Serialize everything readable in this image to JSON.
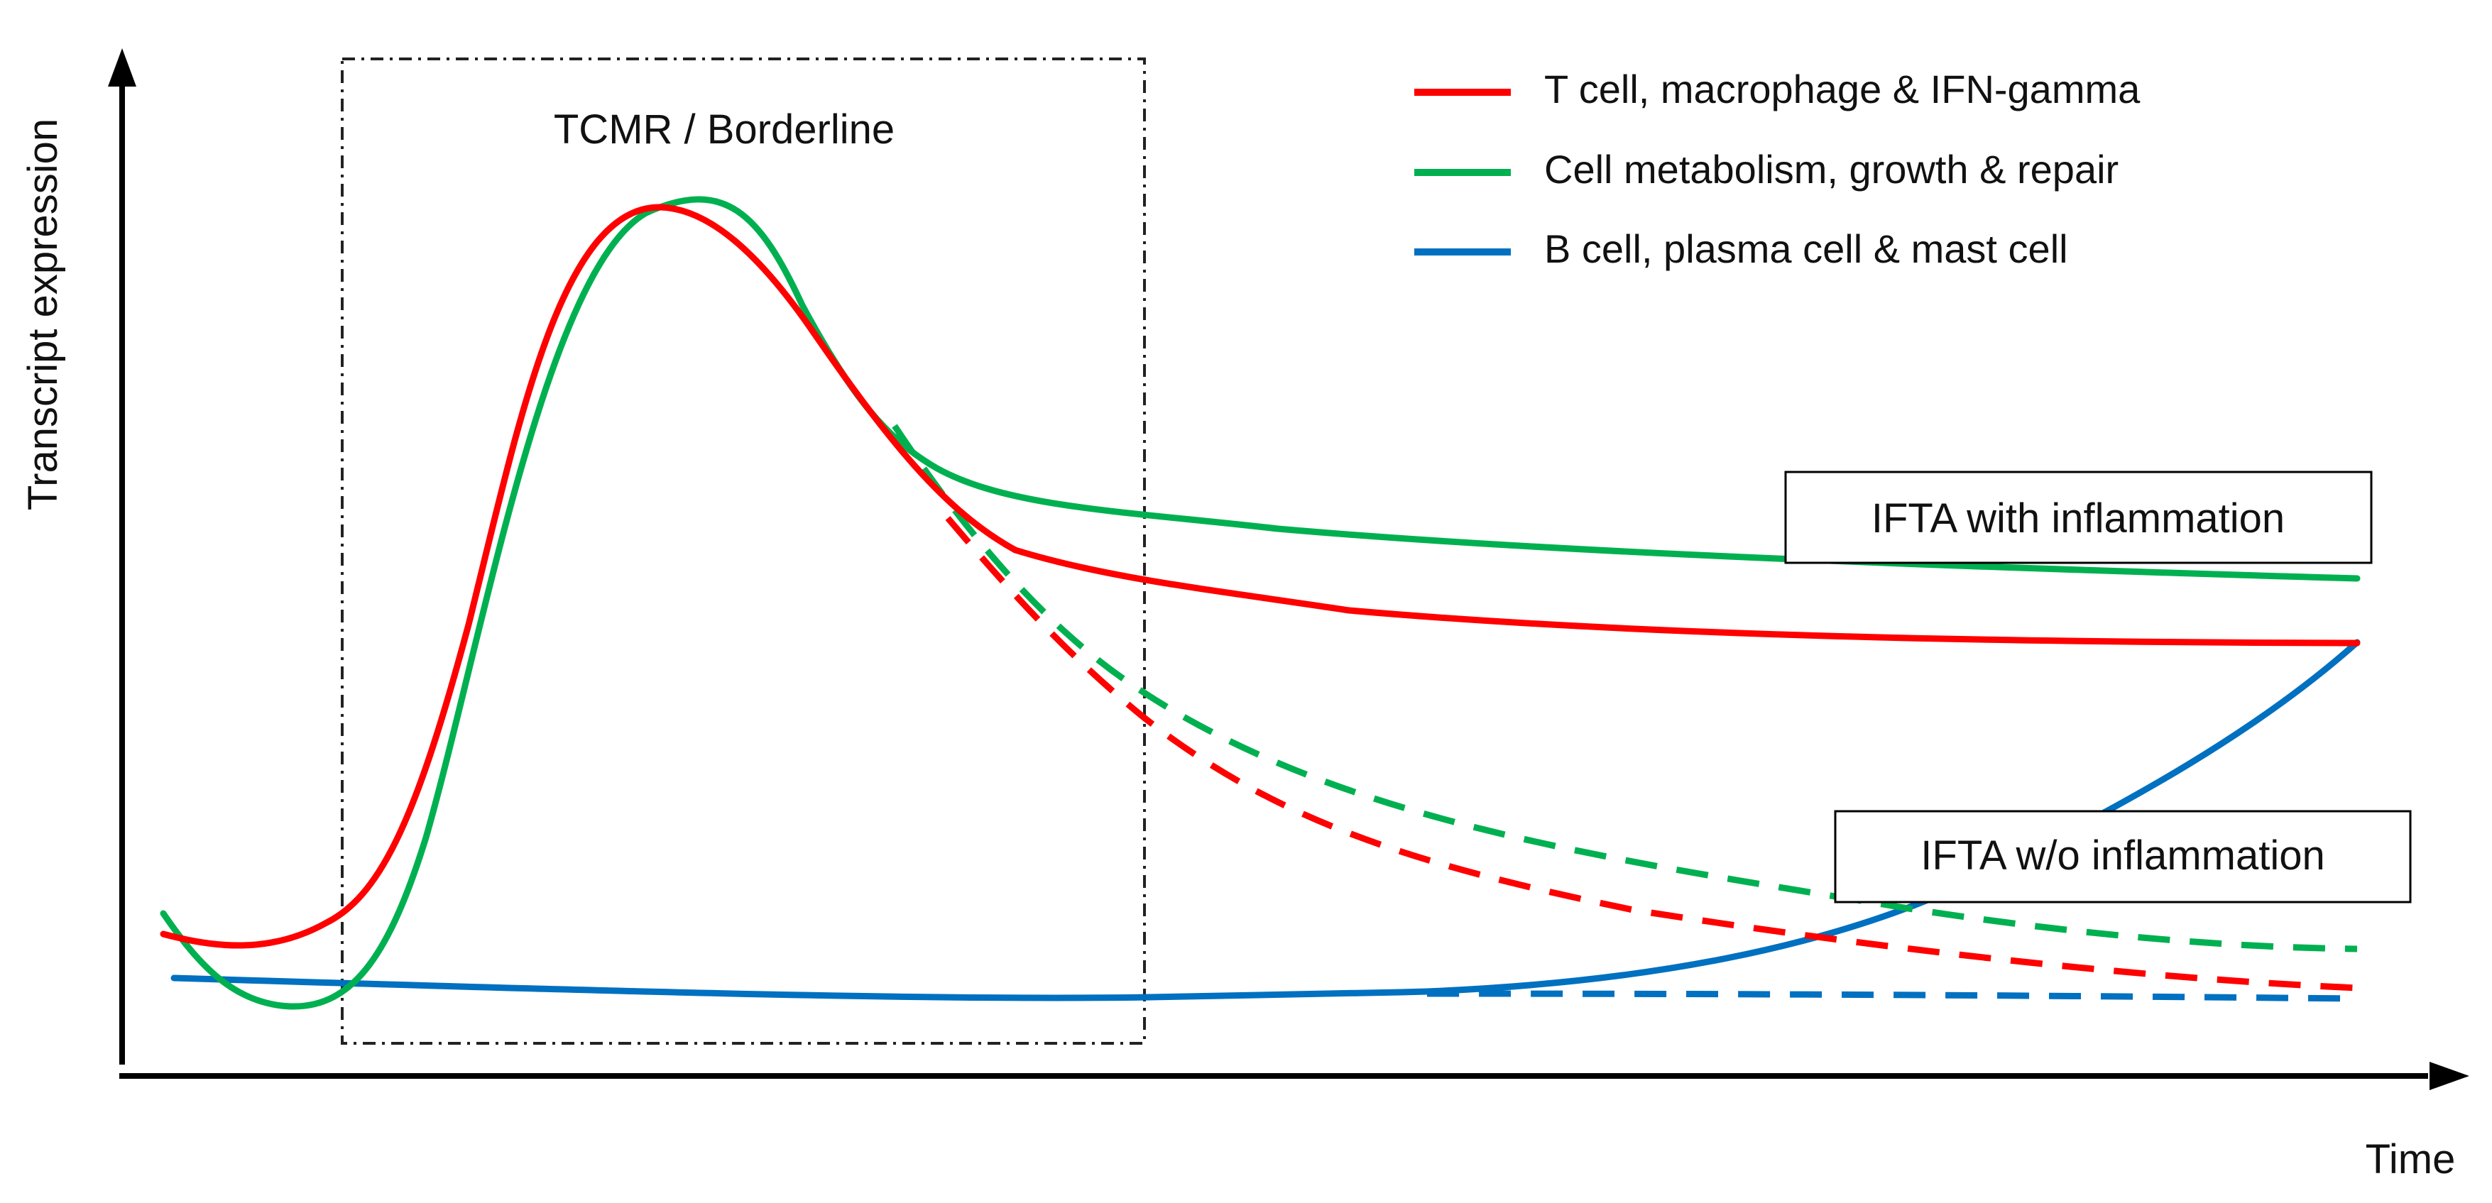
{
  "title": "TCMR / Borderline",
  "axes": {
    "y_label": "Transcript expression",
    "x_label": "Time"
  },
  "legend": {
    "items": [
      {
        "label": "T cell, macrophage & IFN-gamma",
        "color": "#ff0000"
      },
      {
        "label": "Cell metabolism, growth & repair",
        "color": "#00b050"
      },
      {
        "label": "B cell, plasma cell & mast cell",
        "color": "#0070c0"
      }
    ]
  },
  "annotations": {
    "with_inflammation": "IFTA with inflammation",
    "without_inflammation": "IFTA w/o inflammation"
  },
  "line_styles": {
    "solid": "solid",
    "dashed": "dashed"
  }
}
